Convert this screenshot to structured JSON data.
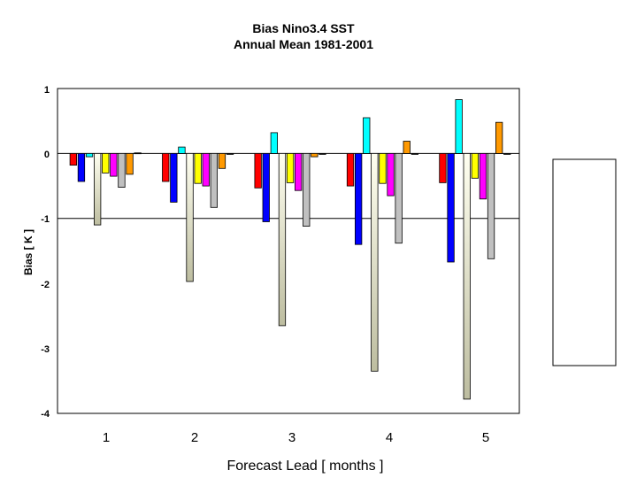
{
  "chart_data": {
    "type": "bar",
    "title": "Bias Nino3.4 SST",
    "subtitle": "Annual Mean 1981-2001",
    "xlabel": "Forecast Lead [ months ]",
    "ylabel": "Bias [ K ]",
    "categories": [
      "1",
      "2",
      "3",
      "4",
      "5"
    ],
    "yticks": [
      "1",
      "0",
      "-1",
      "-2",
      "-3",
      "-4"
    ],
    "ylim": [
      -4,
      1
    ],
    "grid": "horizontal at 0 and -1",
    "legend": "right (empty box)",
    "series": [
      {
        "color": "#ff0000",
        "values": [
          -0.18,
          -0.43,
          -0.53,
          -0.5,
          -0.45
        ]
      },
      {
        "color": "#0000ff",
        "values": [
          -0.43,
          -0.75,
          -1.05,
          -1.4,
          -1.67
        ]
      },
      {
        "color": "#00ffff",
        "values": [
          -0.05,
          0.1,
          0.32,
          0.55,
          0.83
        ]
      },
      {
        "color": "#bdbda0",
        "values": [
          -1.1,
          -1.97,
          -2.65,
          -3.35,
          -3.78
        ]
      },
      {
        "color": "#ffff00",
        "values": [
          -0.3,
          -0.46,
          -0.45,
          -0.46,
          -0.38
        ]
      },
      {
        "color": "#ff00ff",
        "values": [
          -0.35,
          -0.5,
          -0.57,
          -0.65,
          -0.7
        ]
      },
      {
        "color": "#c0c0c0",
        "values": [
          -0.52,
          -0.83,
          -1.12,
          -1.38,
          -1.62
        ]
      },
      {
        "color": "#ff9900",
        "values": [
          -0.32,
          -0.23,
          -0.05,
          0.19,
          0.48
        ]
      },
      {
        "color": "#000000",
        "values": [
          0.01,
          0.0,
          0.0,
          0.0,
          0.0
        ]
      }
    ]
  }
}
